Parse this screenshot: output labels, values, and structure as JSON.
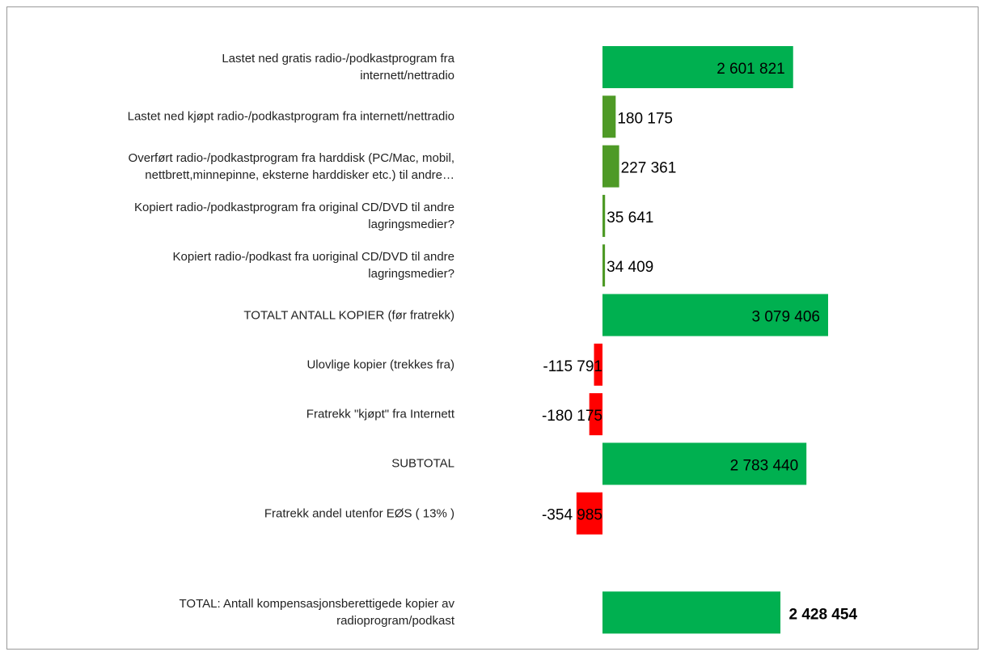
{
  "chart_data": {
    "type": "bar",
    "orientation": "horizontal",
    "categories": [
      "Lastet ned gratis radio-/podkastprogram fra\ninternett/nettradio",
      "Lastet ned kjøpt radio-/podkastprogram fra internett/nettradio",
      "Overført radio-/podkastprogram fra harddisk (PC/Mac, mobil,\nnettbrett,minnepinne, eksterne harddisker etc.) til andre…",
      "Kopiert radio-/podkastprogram fra original CD/DVD til andre\nlagringsmedier?",
      "Kopiert radio-/podkast fra uoriginal CD/DVD til andre\nlagringsmedier?",
      "TOTALT ANTALL KOPIER (før fratrekk)",
      "Ulovlige kopier (trekkes fra)",
      "Fratrekk \"kjøpt\" fra Internett",
      "SUBTOTAL",
      "Fratrekk andel utenfor EØS ( 13% )",
      null,
      "TOTAL: Antall kompensasjonsberettigede kopier av\nradioprogram/podkast"
    ],
    "values": [
      2601821,
      180175,
      227361,
      35641,
      34409,
      3079406,
      -115791,
      -180175,
      2783440,
      -354985,
      null,
      2428454
    ],
    "value_labels": [
      "2 601 821",
      "180 175",
      "227 361",
      "35 641",
      "34 409",
      "3 079 406",
      "-115 791",
      "-180 175",
      "2 783 440",
      "-354 985",
      null,
      "2 428 454"
    ],
    "colors": [
      "#00b050",
      "#4e9a26",
      "#4e9a26",
      "#4e9a26",
      "#4e9a26",
      "#00b050",
      "#ff0000",
      "#ff0000",
      "#00b050",
      "#ff0000",
      null,
      "#00b050"
    ]
  }
}
